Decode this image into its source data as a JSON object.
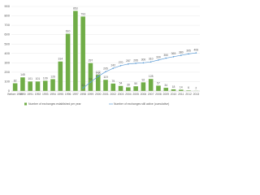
{
  "chart_data": {
    "type": "bar_line",
    "categories": [
      "Before 1990",
      "1990",
      "1991",
      "1992",
      "1993",
      "1994",
      "1995",
      "1996",
      "1997",
      "1998",
      "1999",
      "2000",
      "2001",
      "2002",
      "2003",
      "2004",
      "2005",
      "2006",
      "2007",
      "2008",
      "2009",
      "2010",
      "2011",
      "2012",
      "2013"
    ],
    "series": [
      {
        "name": "Number of exchanges established per year",
        "color": "#70ad47",
        "kind": "bar",
        "values": [
          82,
          145,
          101,
          101,
          109,
          126,
          314,
          610,
          853,
          793,
          297,
          172,
          119,
          79,
          54,
          39,
          50,
          92,
          128,
          57,
          34,
          18,
          14,
          6,
          2
        ]
      },
      {
        "name": "Number of exchanges still active (cumulative)",
        "color": "#5b9bd5",
        "kind": "line",
        "values": [
          null,
          null,
          null,
          null,
          null,
          null,
          null,
          null,
          null,
          31,
          94,
          155,
          205,
          242,
          270,
          287,
          295,
          300,
          310,
          330,
          350,
          365,
          380,
          395,
          406
        ]
      }
    ],
    "ylim": [
      0,
      900
    ],
    "yticks": [
      0,
      100,
      200,
      300,
      400,
      500,
      600,
      700,
      800,
      900
    ],
    "grid": true,
    "legend": "bottom"
  }
}
